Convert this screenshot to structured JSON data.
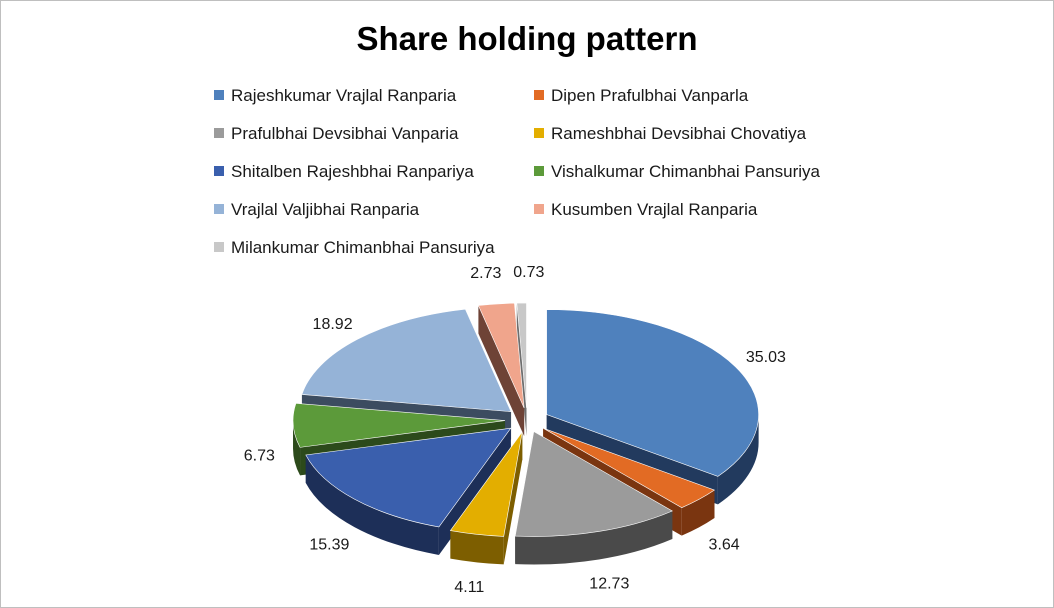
{
  "chart_data": {
    "type": "pie",
    "title": "Share holding pattern",
    "legend_position": "top",
    "slices": [
      {
        "name": "Rajeshkumar Vrajlal Ranparia",
        "value": 35.03,
        "label": "35.03",
        "color": "#4F81BD",
        "side": "#223A5E"
      },
      {
        "name": "Dipen Prafulbhai Vanparla",
        "value": 3.64,
        "label": "3.64",
        "color": "#E26B24",
        "side": "#7A3510"
      },
      {
        "name": "Prafulbhai Devsibhai Vanparia",
        "value": 12.73,
        "label": "12.73",
        "color": "#9B9B9B",
        "side": "#4A4A4A"
      },
      {
        "name": "Rameshbhai Devsibhai Chovatiya",
        "value": 4.11,
        "label": "4.11",
        "color": "#E3AE00",
        "side": "#7D5E00"
      },
      {
        "name": "Shitalben Rajeshbhai Ranpariya",
        "value": 15.39,
        "label": "15.39",
        "color": "#3A5FAD",
        "side": "#1D2F58"
      },
      {
        "name": "Vishalkumar Chimanbhai Pansuriya",
        "value": 6.73,
        "label": "6.73",
        "color": "#5C9A3A",
        "side": "#2C4A1B"
      },
      {
        "name": "Vrajlal Valjibhai Ranparia",
        "value": 18.92,
        "label": "18.92",
        "color": "#95B3D7",
        "side": "#3C4C60"
      },
      {
        "name": "Kusumben Vrajlal Ranparia",
        "value": 2.73,
        "label": "2.73",
        "color": "#F0A58C",
        "side": "#6E4336"
      },
      {
        "name": "Milankumar Chimanbhai Pansuriya",
        "value": 0.73,
        "label": "0.73",
        "color": "#C8C8C8",
        "side": "#6E6E6E"
      }
    ]
  }
}
